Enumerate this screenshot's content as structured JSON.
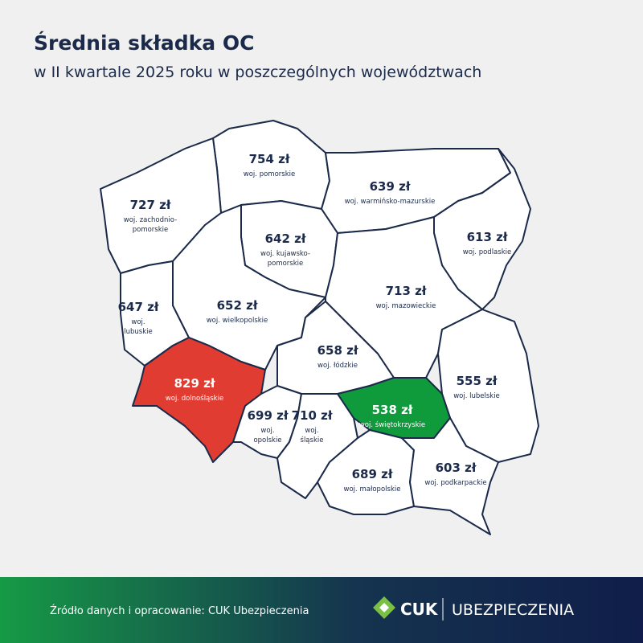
{
  "header": {
    "title": "Średnia składka OC",
    "subtitle": "w II kwartale 2025 roku w poszczególnych województwach"
  },
  "regions": [
    {
      "label": "754 zł",
      "name": [
        "woj. pomorskie"
      ],
      "color": "#ffffff"
    },
    {
      "label": "639 zł",
      "name": [
        "woj. warmińsko-mazurskie"
      ],
      "color": "#ffffff"
    },
    {
      "label": "727 zł",
      "name": [
        "woj. zachodnio-",
        "pomorskie"
      ],
      "color": "#ffffff"
    },
    {
      "label": "613 zł",
      "name": [
        "woj. podlaskie"
      ],
      "color": "#ffffff"
    },
    {
      "label": "642 zł",
      "name": [
        "woj. kujawsko-",
        "pomorskie"
      ],
      "color": "#ffffff"
    },
    {
      "label": "647 zł",
      "name": [
        "woj.",
        "lubuskie"
      ],
      "color": "#ffffff"
    },
    {
      "label": "652 zł",
      "name": [
        "woj. wielkopolskie"
      ],
      "color": "#ffffff"
    },
    {
      "label": "713 zł",
      "name": [
        "woj. mazowieckie"
      ],
      "color": "#ffffff"
    },
    {
      "label": "658 zł",
      "name": [
        "woj. łódzkie"
      ],
      "color": "#ffffff"
    },
    {
      "label": "555 zł",
      "name": [
        "woj. lubelskie"
      ],
      "color": "#ffffff"
    },
    {
      "label": "829 zł",
      "name": [
        "woj. dolnośląskie"
      ],
      "color": "#e03c31"
    },
    {
      "label": "699 zł",
      "name": [
        "woj.",
        "opolskie"
      ],
      "color": "#ffffff"
    },
    {
      "label": "710 zł",
      "name": [
        "woj.",
        "śląskie"
      ],
      "color": "#ffffff"
    },
    {
      "label": "538 zł",
      "name": [
        "woj. świętokrzyskie"
      ],
      "color": "#0f9a3c"
    },
    {
      "label": "689 zł",
      "name": [
        "woj. małopolskie"
      ],
      "color": "#ffffff"
    },
    {
      "label": "603 zł",
      "name": [
        "woj. podkarpackie"
      ],
      "color": "#ffffff"
    }
  ],
  "footer": {
    "source": "Źródło danych i opracowanie: CUK Ubezpieczenia",
    "brand": "CUK",
    "brand_suffix": "UBEZPIECZENIA"
  }
}
